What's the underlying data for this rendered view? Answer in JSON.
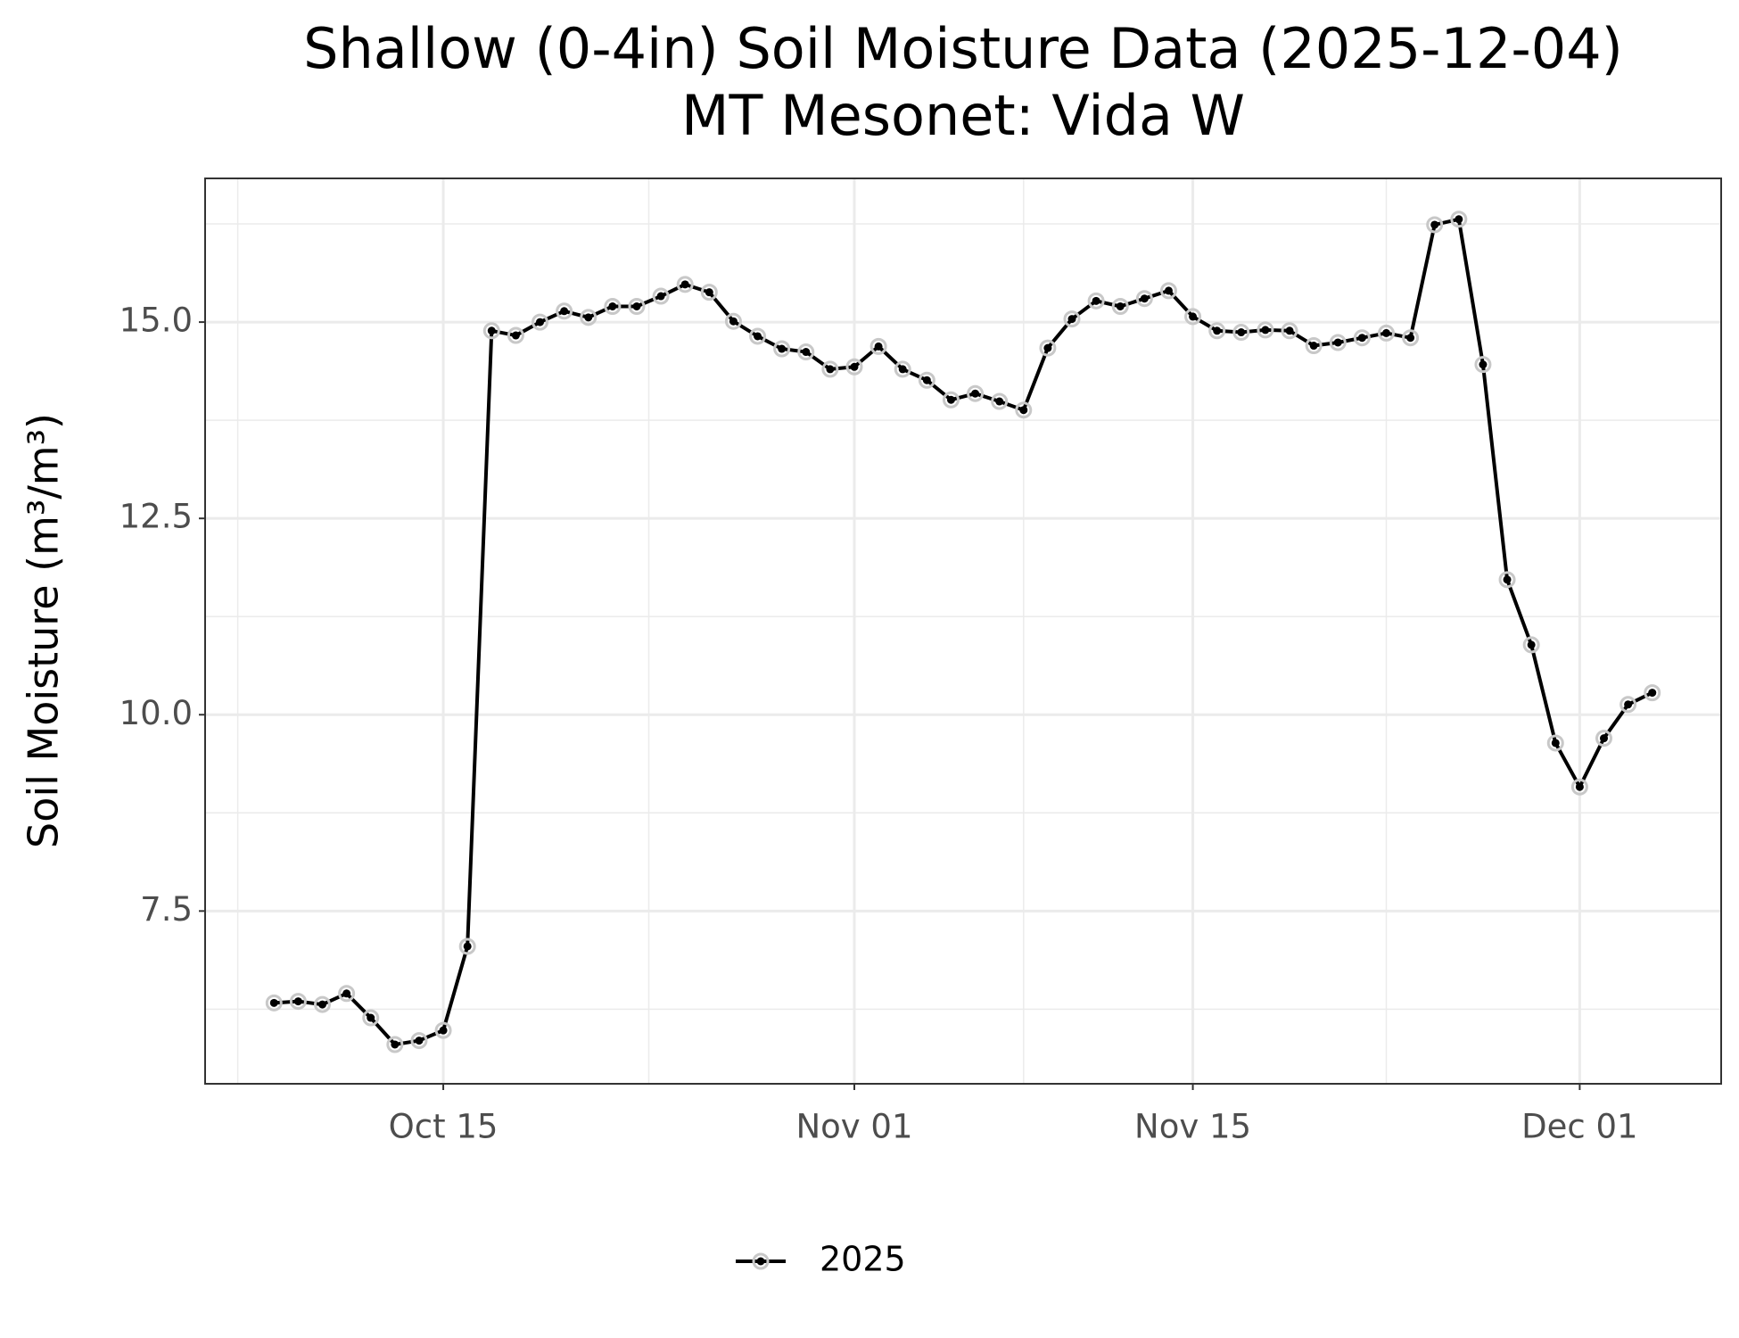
{
  "chart_data": {
    "type": "line",
    "title": "Shallow (0-4in) Soil Moisture Data (2025-12-04)",
    "subtitle": "MT Mesonet: Vida W",
    "y_label": "Soil Moisture (m³/m³)",
    "x": [
      "Oct 08",
      "Oct 09",
      "Oct 10",
      "Oct 11",
      "Oct 12",
      "Oct 13",
      "Oct 14",
      "Oct 15",
      "Oct 16",
      "Oct 17",
      "Oct 18",
      "Oct 19",
      "Oct 20",
      "Oct 21",
      "Oct 22",
      "Oct 23",
      "Oct 24",
      "Oct 25",
      "Oct 26",
      "Oct 27",
      "Oct 28",
      "Oct 29",
      "Oct 30",
      "Oct 31",
      "Nov 01",
      "Nov 02",
      "Nov 03",
      "Nov 04",
      "Nov 05",
      "Nov 06",
      "Nov 07",
      "Nov 08",
      "Nov 09",
      "Nov 10",
      "Nov 11",
      "Nov 12",
      "Nov 13",
      "Nov 14",
      "Nov 15",
      "Nov 16",
      "Nov 17",
      "Nov 18",
      "Nov 19",
      "Nov 20",
      "Nov 21",
      "Nov 22",
      "Nov 23",
      "Nov 24",
      "Nov 25",
      "Nov 26",
      "Nov 27",
      "Nov 28",
      "Nov 29",
      "Nov 30",
      "Dec 01",
      "Dec 02",
      "Dec 03",
      "Dec 04"
    ],
    "series": [
      {
        "name": "2025",
        "color": "#000000",
        "values": [
          6.33,
          6.35,
          6.31,
          6.45,
          6.14,
          5.8,
          5.85,
          5.98,
          7.05,
          14.89,
          14.83,
          15.0,
          15.14,
          15.06,
          15.2,
          15.2,
          15.33,
          15.48,
          15.38,
          15.01,
          14.82,
          14.66,
          14.62,
          14.4,
          14.43,
          14.69,
          14.4,
          14.26,
          14.01,
          14.09,
          13.99,
          13.88,
          14.67,
          15.04,
          15.27,
          15.2,
          15.3,
          15.4,
          15.07,
          14.89,
          14.87,
          14.9,
          14.89,
          14.7,
          14.74,
          14.8,
          14.86,
          14.8,
          16.24,
          16.31,
          14.46,
          11.72,
          10.89,
          9.64,
          9.08,
          9.7,
          10.13,
          10.28
        ]
      }
    ],
    "xticks": [
      "Oct 15",
      "Nov 01",
      "Nov 15",
      "Dec 01"
    ],
    "ylim": [
      5.3,
      16.83
    ],
    "yticks": [
      7.5,
      {
        "value": 10,
        "label": "10.0"
      },
      12.5,
      {
        "value": 15,
        "label": "15.0"
      }
    ],
    "grid": true,
    "legend": "bottom"
  }
}
